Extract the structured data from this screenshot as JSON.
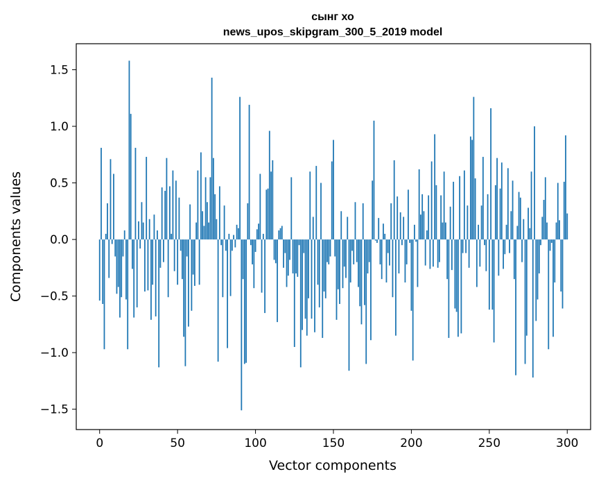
{
  "chart_data": {
    "type": "bar",
    "title_line1": "сынг хо",
    "title_line2": "news_upos_skipgram_300_5_2019 model",
    "xlabel": "Vector components",
    "ylabel": "Components values",
    "xlim": [
      -15,
      315
    ],
    "ylim": [
      -1.68,
      1.73
    ],
    "xticks": [
      0,
      50,
      100,
      150,
      200,
      250,
      300
    ],
    "yticks": [
      -1.5,
      -1.0,
      -0.5,
      0.0,
      0.5,
      1.0,
      1.5
    ],
    "ytick_labels": [
      "−1.5",
      "−1.0",
      "−0.5",
      "0.0",
      "0.5",
      "1.0",
      "1.5"
    ],
    "grid": false,
    "bar_color": "#1f77b4",
    "values": [
      -0.54,
      0.81,
      -0.57,
      -0.97,
      0.05,
      0.32,
      -0.34,
      0.71,
      -0.04,
      0.58,
      -0.15,
      -0.48,
      -0.42,
      -0.69,
      -0.51,
      -0.15,
      0.08,
      -0.53,
      -0.97,
      1.58,
      1.11,
      -0.26,
      -0.69,
      0.81,
      -0.6,
      0.16,
      -0.08,
      0.33,
      0.15,
      -0.46,
      0.73,
      -0.45,
      0.18,
      -0.71,
      -0.4,
      0.22,
      -0.68,
      0.08,
      -1.13,
      -0.25,
      0.46,
      -0.2,
      0.43,
      0.72,
      -0.51,
      0.47,
      0.05,
      0.61,
      -0.28,
      0.52,
      -0.4,
      0.37,
      -0.1,
      -0.35,
      -0.86,
      -1.12,
      -0.15,
      -0.77,
      0.31,
      -0.63,
      -0.31,
      -0.41,
      0.15,
      0.61,
      -0.4,
      0.77,
      0.25,
      0.12,
      0.55,
      0.33,
      0.15,
      0.55,
      1.43,
      0.72,
      0.4,
      0.18,
      -1.08,
      0.47,
      -0.05,
      -0.51,
      0.3,
      -0.1,
      -0.96,
      0.05,
      -0.5,
      -0.1,
      0.04,
      -0.07,
      0.13,
      0.1,
      1.26,
      -1.51,
      -0.35,
      -1.1,
      -1.09,
      0.32,
      1.19,
      -0.05,
      -0.22,
      -0.43,
      -0.11,
      0.09,
      0.14,
      0.58,
      -0.47,
      0.05,
      -0.65,
      0.44,
      0.45,
      0.96,
      0.6,
      0.7,
      -0.18,
      -0.21,
      -0.73,
      0.08,
      0.1,
      0.12,
      -0.25,
      -0.12,
      -0.42,
      -0.32,
      -0.18,
      0.55,
      -0.3,
      -0.95,
      -0.3,
      -0.33,
      -0.05,
      -1.13,
      -0.8,
      -0.12,
      -0.7,
      -0.85,
      -0.52,
      0.6,
      -0.7,
      0.2,
      -0.82,
      0.65,
      -0.4,
      -0.6,
      0.5,
      -0.87,
      -0.46,
      -0.52,
      -0.2,
      -0.22,
      -0.15,
      0.69,
      0.88,
      -0.15,
      -0.71,
      -0.44,
      -0.57,
      0.25,
      -0.43,
      -0.24,
      -0.34,
      0.2,
      -1.16,
      -0.38,
      -0.1,
      -0.22,
      0.33,
      -0.2,
      -0.42,
      -0.59,
      -0.75,
      0.32,
      -0.58,
      -1.1,
      -0.3,
      -0.2,
      -0.89,
      0.52,
      1.05,
      -0.01,
      -0.03,
      0.19,
      -0.22,
      -0.35,
      0.14,
      0.05,
      -0.38,
      -0.12,
      -0.23,
      0.32,
      -0.51,
      0.7,
      -0.85,
      0.38,
      -0.3,
      0.24,
      -0.05,
      0.2,
      -0.38,
      -0.22,
      0.44,
      -0.03,
      -0.63,
      -1.07,
      0.13,
      -0.02,
      -0.42,
      0.62,
      0.22,
      0.4,
      0.25,
      -0.23,
      0.08,
      0.39,
      -0.26,
      0.69,
      -0.24,
      0.93,
      0.48,
      -0.25,
      -0.2,
      0.39,
      0.15,
      0.6,
      0.15,
      -0.35,
      -0.87,
      0.29,
      -0.27,
      0.51,
      -0.61,
      -0.64,
      -0.86,
      0.56,
      -0.83,
      -0.12,
      0.61,
      -0.12,
      0.3,
      -0.25,
      0.91,
      0.88,
      1.26,
      0.54,
      -0.42,
      0.13,
      -0.24,
      0.3,
      0.73,
      -0.05,
      -0.28,
      0.4,
      -0.62,
      1.16,
      -0.62,
      -0.91,
      0.48,
      0.72,
      -0.32,
      0.45,
      0.68,
      -0.26,
      -0.13,
      0.13,
      0.63,
      -0.12,
      0.25,
      0.52,
      -0.35,
      -1.2,
      0.12,
      0.42,
      0.37,
      -0.2,
      0.18,
      -1.1,
      -0.85,
      0.28,
      0.1,
      0.6,
      -1.22,
      1.0,
      -0.72,
      -0.53,
      -0.3,
      -0.05,
      0.2,
      0.35,
      0.55,
      0.15,
      -0.97,
      -0.1,
      -0.03,
      -0.86,
      -0.38,
      0.15,
      0.5,
      0.17,
      -0.46,
      -0.61,
      0.51,
      0.92,
      0.23
    ]
  }
}
